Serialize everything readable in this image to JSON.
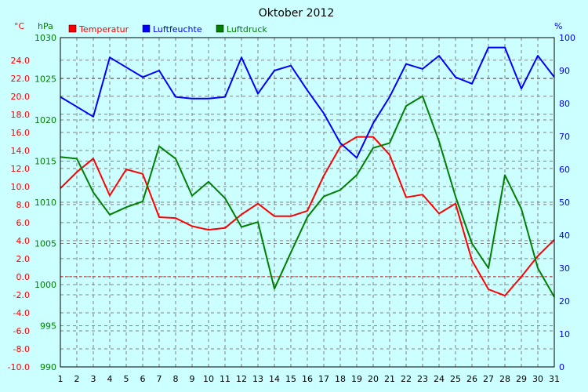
{
  "chart_data": {
    "type": "line",
    "title": "Oktober 2012",
    "axis_units": {
      "temp": "°C",
      "press": "hPa",
      "hum": "%"
    },
    "x": [
      1,
      2,
      3,
      4,
      5,
      6,
      7,
      8,
      9,
      10,
      11,
      12,
      13,
      14,
      15,
      16,
      17,
      18,
      19,
      20,
      21,
      22,
      23,
      24,
      25,
      26,
      27,
      28,
      29,
      30,
      31
    ],
    "temp_ticks": [
      "24.0",
      "22.0",
      "20.0",
      "18.0",
      "16.0",
      "14.0",
      "12.0",
      "10.0",
      "8.0",
      "6.0",
      "4.0",
      "2.0",
      "0.0",
      "-2.0",
      "-4.0",
      "-6.0",
      "-8.0",
      "-10.0"
    ],
    "press_ticks": [
      "1030",
      "1025",
      "1020",
      "1015",
      "1010",
      "1005",
      "1000",
      "995",
      "990"
    ],
    "hum_ticks": [
      "100",
      "90",
      "80",
      "70",
      "60",
      "50",
      "40",
      "30",
      "20",
      "10",
      "0"
    ],
    "temp_range": [
      -10,
      26.5
    ],
    "press_range": [
      990,
      1030
    ],
    "hum_range": [
      0,
      100
    ],
    "grid": true,
    "legend_position": "top-left",
    "series": [
      {
        "name": "Temperatur",
        "axis": "temp",
        "color": "#ff0000",
        "values": [
          9.8,
          11.6,
          13.1,
          9.0,
          11.9,
          11.4,
          6.6,
          6.5,
          5.6,
          5.2,
          5.4,
          6.9,
          8.1,
          6.7,
          6.7,
          7.3,
          11.2,
          14.4,
          15.5,
          15.5,
          13.5,
          8.8,
          9.1,
          7.0,
          8.1,
          1.8,
          -1.4,
          -2.1,
          0.0,
          2.3,
          4.1
        ]
      },
      {
        "name": "Luftfeuchte",
        "axis": "hum",
        "color": "#0000ff",
        "values": [
          82,
          79,
          76,
          94,
          91,
          88,
          90,
          82,
          81.5,
          81.5,
          82,
          94,
          83,
          90,
          91.5,
          84,
          77,
          68,
          63.5,
          74,
          82,
          92,
          90.5,
          94.5,
          88,
          86,
          97,
          97,
          84.5,
          94.5,
          88
        ]
      },
      {
        "name": "Luftdruck",
        "axis": "press",
        "color": "#008000",
        "values": [
          1015.5,
          1015.3,
          1011.2,
          1008.5,
          1009.4,
          1010.1,
          1016.8,
          1015.3,
          1010.8,
          1012.5,
          1010.5,
          1007.0,
          1007.6,
          999.5,
          1003.9,
          1008.2,
          1010.7,
          1011.5,
          1013.3,
          1016.6,
          1017.2,
          1021.7,
          1022.9,
          1017.4,
          1010.7,
          1005.0,
          1002.0,
          1013.3,
          1009.2,
          1002.0,
          998.5
        ]
      }
    ]
  }
}
